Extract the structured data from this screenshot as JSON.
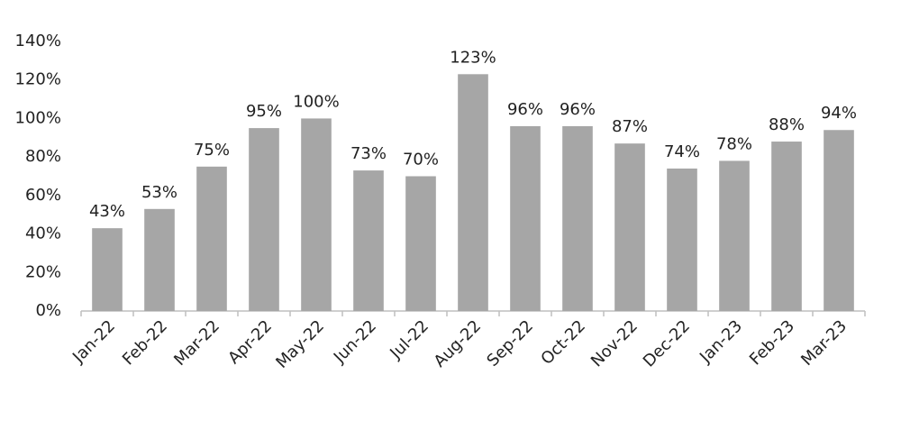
{
  "chart_data": {
    "type": "bar",
    "categories": [
      "Jan-22",
      "Feb-22",
      "Mar-22",
      "Apr-22",
      "May-22",
      "Jun-22",
      "Jul-22",
      "Aug-22",
      "Sep-22",
      "Oct-22",
      "Nov-22",
      "Dec-22",
      "Jan-23",
      "Feb-23",
      "Mar-23"
    ],
    "values": [
      43,
      53,
      75,
      95,
      100,
      73,
      70,
      123,
      96,
      96,
      87,
      74,
      78,
      88,
      94
    ],
    "value_labels": [
      "43%",
      "53%",
      "75%",
      "95%",
      "100%",
      "73%",
      "70%",
      "123%",
      "96%",
      "96%",
      "87%",
      "74%",
      "78%",
      "88%",
      "94%"
    ],
    "color": "#a6a6a6",
    "ylim": [
      0,
      140
    ],
    "yticks": [
      {
        "value": 0,
        "label": "0%"
      },
      {
        "value": 20,
        "label": "20%"
      },
      {
        "value": 40,
        "label": "40%"
      },
      {
        "value": 60,
        "label": "60%"
      },
      {
        "value": 80,
        "label": "80%"
      },
      {
        "value": 100,
        "label": "100%"
      },
      {
        "value": 120,
        "label": "120%"
      },
      {
        "value": 140,
        "label": "140%"
      }
    ],
    "grid": false
  }
}
